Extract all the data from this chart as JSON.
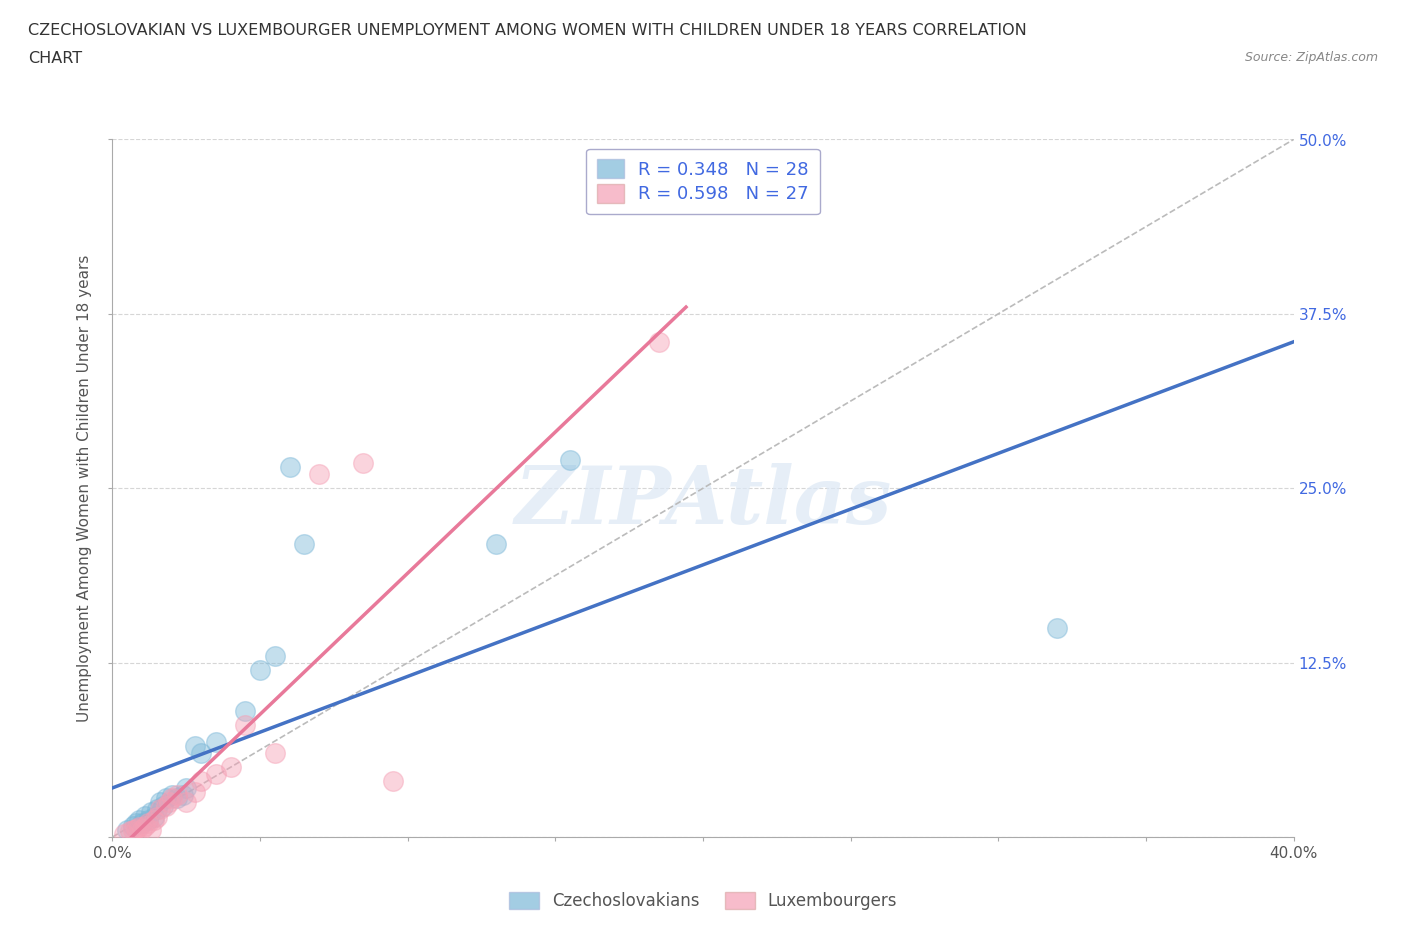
{
  "title_line1": "CZECHOSLOVAKIAN VS LUXEMBOURGER UNEMPLOYMENT AMONG WOMEN WITH CHILDREN UNDER 18 YEARS CORRELATION",
  "title_line2": "CHART",
  "source_text": "Source: ZipAtlas.com",
  "ylabel": "Unemployment Among Women with Children Under 18 years",
  "xlim": [
    0.0,
    0.4
  ],
  "ylim": [
    0.0,
    0.5
  ],
  "xticks": [
    0.0,
    0.05,
    0.1,
    0.15,
    0.2,
    0.25,
    0.3,
    0.35,
    0.4
  ],
  "xtick_labels_show": [
    "0.0%",
    "",
    "",
    "",
    "",
    "",
    "",
    "",
    "40.0%"
  ],
  "yticks": [
    0.0,
    0.125,
    0.25,
    0.375,
    0.5
  ],
  "ytick_labels_right": [
    "",
    "12.5%",
    "25.0%",
    "37.5%",
    "50.0%"
  ],
  "blue_color": "#7db8d8",
  "pink_color": "#f5a0b5",
  "blue_line_color": "#4472c4",
  "pink_line_color": "#f4a0b5",
  "blue_label": "Czechoslovakians",
  "pink_label": "Luxembourgers",
  "blue_R": 0.348,
  "blue_N": 28,
  "pink_R": 0.598,
  "pink_N": 27,
  "legend_R_N_color": "#4169e1",
  "watermark_text": "ZIPAtlas",
  "blue_scatter_x": [
    0.005,
    0.007,
    0.008,
    0.009,
    0.01,
    0.011,
    0.012,
    0.013,
    0.014,
    0.015,
    0.016,
    0.017,
    0.018,
    0.02,
    0.022,
    0.024,
    0.025,
    0.028,
    0.03,
    0.035,
    0.045,
    0.05,
    0.055,
    0.06,
    0.065,
    0.13,
    0.155,
    0.32
  ],
  "blue_scatter_y": [
    0.005,
    0.008,
    0.01,
    0.012,
    0.01,
    0.015,
    0.012,
    0.018,
    0.014,
    0.02,
    0.025,
    0.022,
    0.028,
    0.03,
    0.028,
    0.03,
    0.035,
    0.065,
    0.06,
    0.068,
    0.09,
    0.12,
    0.13,
    0.265,
    0.21,
    0.21,
    0.27,
    0.15
  ],
  "pink_scatter_x": [
    0.004,
    0.006,
    0.007,
    0.008,
    0.009,
    0.01,
    0.011,
    0.012,
    0.013,
    0.014,
    0.015,
    0.016,
    0.018,
    0.019,
    0.02,
    0.022,
    0.025,
    0.028,
    0.03,
    0.035,
    0.04,
    0.045,
    0.055,
    0.07,
    0.085,
    0.095,
    0.185
  ],
  "pink_scatter_y": [
    0.002,
    0.004,
    0.005,
    0.006,
    0.007,
    0.006,
    0.008,
    0.01,
    0.005,
    0.012,
    0.014,
    0.02,
    0.022,
    0.025,
    0.028,
    0.03,
    0.025,
    0.032,
    0.04,
    0.045,
    0.05,
    0.08,
    0.06,
    0.26,
    0.268,
    0.04,
    0.355
  ],
  "background_color": "#ffffff",
  "grid_color": "#cccccc",
  "diag_line_slope": 1.25
}
